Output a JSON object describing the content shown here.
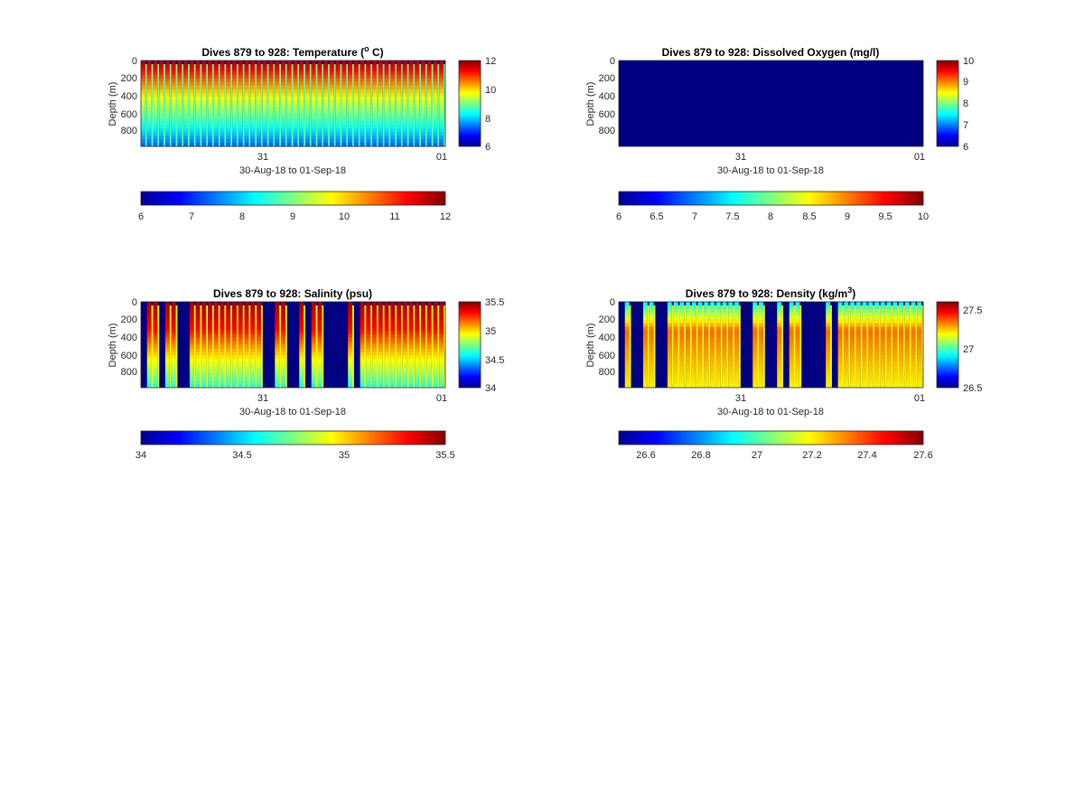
{
  "chart_data": [
    {
      "type": "heatmap",
      "panel": "temperature",
      "title_main": "Dives 879 to 928: Temperature (",
      "title_sup": "o",
      "title_tail": " C)",
      "xlabel": "30-Aug-18 to 01-Sep-18",
      "ylabel": "Depth (m)",
      "x_ticks": [
        "31",
        "01"
      ],
      "y_ticks": [
        "0",
        "200",
        "400",
        "600",
        "800"
      ],
      "ylim": [
        0,
        960
      ],
      "y_reversed": true,
      "n_profiles": 50,
      "profile": {
        "surface": 11.8,
        "mid": 10.2,
        "deep": 7.3
      },
      "clim": [
        6,
        12
      ],
      "colormap": "jet",
      "colorbar_right_ticks": [
        "12",
        "10",
        "8",
        "6"
      ],
      "colorbar_bottom_ticks": [
        "6",
        "7",
        "8",
        "9",
        "10",
        "11",
        "12"
      ]
    },
    {
      "type": "heatmap",
      "panel": "dissolved-oxygen",
      "title_main": "Dives 879 to 928: Dissolved Oxygen (mg/l)",
      "xlabel": "30-Aug-18 to 01-Sep-18",
      "ylabel": "Depth (m)",
      "x_ticks": [
        "31",
        "01"
      ],
      "y_ticks": [
        "0",
        "200",
        "400",
        "600",
        "800"
      ],
      "ylim": [
        0,
        960
      ],
      "y_reversed": true,
      "uniform_value": 6,
      "clim": [
        6,
        10
      ],
      "colormap": "jet",
      "colorbar_right_ticks": [
        "10",
        "9",
        "8",
        "7",
        "6"
      ],
      "colorbar_bottom_ticks": [
        "6",
        "6.5",
        "7",
        "7.5",
        "8",
        "8.5",
        "9",
        "9.5",
        "10"
      ]
    },
    {
      "type": "heatmap",
      "panel": "salinity",
      "title_main": "Dives 879 to 928: Salinity (psu)",
      "xlabel": "30-Aug-18 to 01-Sep-18",
      "ylabel": "Depth (m)",
      "x_ticks": [
        "31",
        "01"
      ],
      "y_ticks": [
        "0",
        "200",
        "400",
        "600",
        "800"
      ],
      "ylim": [
        0,
        960
      ],
      "y_reversed": true,
      "n_profiles": 50,
      "profile": {
        "surface": 35.45,
        "mid": 35.3,
        "deep": 34.6
      },
      "gap_columns": [
        0,
        3,
        6,
        7,
        20,
        21,
        24,
        25,
        27,
        30,
        31,
        32,
        33,
        35
      ],
      "clim": [
        34,
        35.5
      ],
      "colormap": "jet",
      "colorbar_right_ticks": [
        "35.5",
        "35",
        "34.5",
        "34"
      ],
      "colorbar_bottom_ticks": [
        "34",
        "34.5",
        "35",
        "35.5"
      ]
    },
    {
      "type": "heatmap",
      "panel": "density",
      "title_main": "Dives 879 to 928: Density (kg/m",
      "title_sup": "3",
      "title_tail": ")",
      "xlabel": "30-Aug-18 to 01-Sep-18",
      "ylabel": "Depth (m)",
      "x_ticks": [
        "31",
        "01"
      ],
      "y_ticks": [
        "0",
        "200",
        "400",
        "600",
        "800"
      ],
      "ylim": [
        0,
        960
      ],
      "y_reversed": true,
      "n_profiles": 50,
      "profile": {
        "surface": 26.9,
        "mid": 27.35,
        "deep": 27.2
      },
      "gap_columns": [
        0,
        2,
        3,
        6,
        7,
        20,
        21,
        24,
        25,
        27,
        30,
        31,
        32,
        33,
        35
      ],
      "clim": [
        26.5,
        27.6
      ],
      "colormap": "jet",
      "colorbar_right_ticks": [
        "27.5",
        "27",
        "26.5"
      ],
      "colorbar_bottom_ticks": [
        "26.6",
        "26.8",
        "27",
        "27.2",
        "27.4",
        "27.6"
      ]
    }
  ]
}
